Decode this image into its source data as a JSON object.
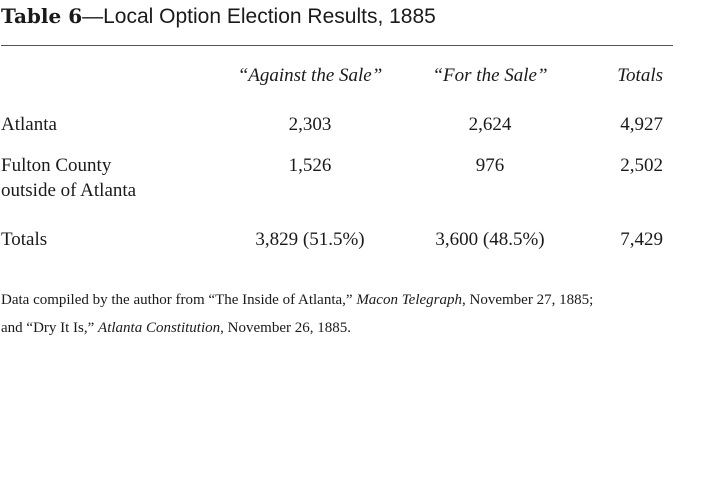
{
  "title": {
    "label": "Table 6",
    "dash": "—",
    "text": "Local Option Election Results, 1885"
  },
  "columns": [
    "“Against the Sale”",
    "“For the Sale”",
    "Totals"
  ],
  "rows": [
    {
      "label_lines": [
        "Atlanta"
      ],
      "values": [
        "2,303",
        "2,624",
        "4,927"
      ]
    },
    {
      "label_lines": [
        "Fulton County",
        "outside of Atlanta"
      ],
      "values": [
        "1,526",
        "976",
        "2,502"
      ]
    },
    {
      "label_lines": [
        "Totals"
      ],
      "values": [
        "3,829 (51.5%)",
        "3,600 (48.5%)",
        "7,429"
      ]
    }
  ],
  "note": {
    "line1_pre": "Data compiled by the author from “The Inside of Atlanta,” ",
    "line1_italic": "Macon Telegraph",
    "line1_post": ", November 27, 1885;",
    "line2_pre": "and “Dry It Is,” ",
    "line2_italic": "Atlanta Constitution",
    "line2_post": ", November 26, 1885."
  }
}
